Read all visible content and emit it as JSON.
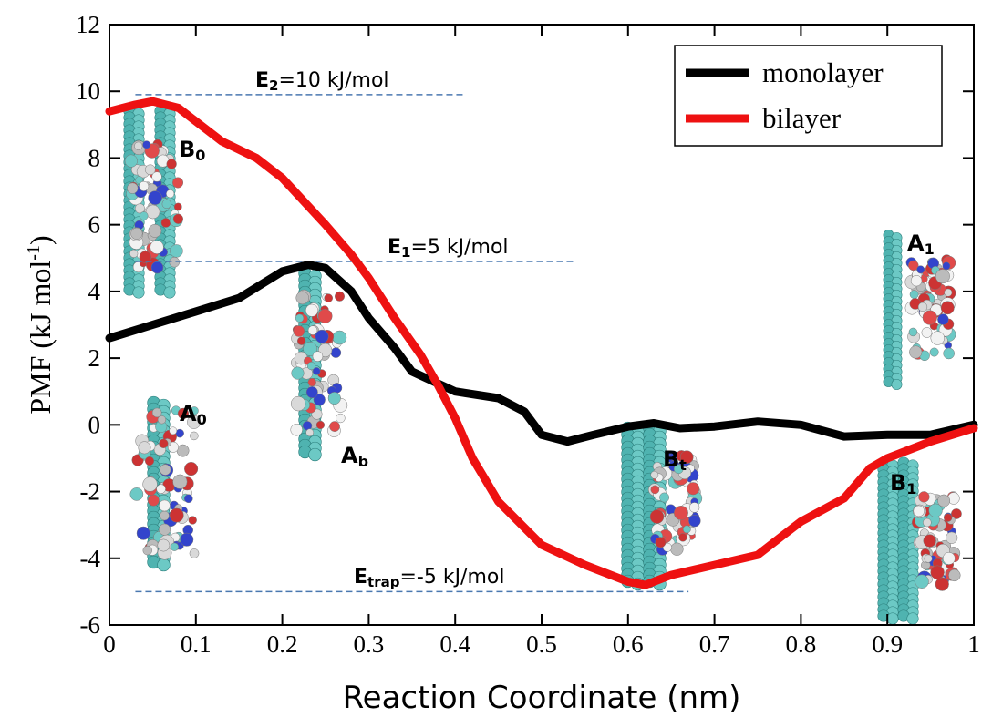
{
  "chart_data": {
    "type": "line",
    "x_label": "Reaction Coordinate (nm)",
    "y_label": {
      "text": "PMF (kJ mol",
      "sup": "-1",
      "end": ")"
    },
    "xlim": [
      0,
      1
    ],
    "ylim": [
      -6,
      12
    ],
    "xticks": [
      0,
      0.1,
      0.2,
      0.3,
      0.4,
      0.5,
      0.6,
      0.7,
      0.8,
      0.9,
      1
    ],
    "yticks": [
      -6,
      -4,
      -2,
      0,
      2,
      4,
      6,
      8,
      10,
      12
    ],
    "legend": "top-right",
    "series": [
      {
        "name": "monolayer",
        "color": "#000000",
        "x": [
          0,
          0.05,
          0.1,
          0.15,
          0.2,
          0.23,
          0.25,
          0.28,
          0.3,
          0.33,
          0.35,
          0.4,
          0.45,
          0.48,
          0.5,
          0.53,
          0.56,
          0.6,
          0.63,
          0.66,
          0.7,
          0.75,
          0.8,
          0.85,
          0.9,
          0.95,
          1
        ],
        "values": [
          2.6,
          3.0,
          3.4,
          3.8,
          4.6,
          4.8,
          4.7,
          4.0,
          3.2,
          2.3,
          1.6,
          1.0,
          0.8,
          0.4,
          -0.3,
          -0.5,
          -0.3,
          -0.05,
          0.05,
          -0.1,
          -0.05,
          0.1,
          0,
          -0.35,
          -0.3,
          -0.3,
          0
        ]
      },
      {
        "name": "bilayer",
        "color": "#ee1111",
        "x": [
          0,
          0.03,
          0.05,
          0.08,
          0.1,
          0.13,
          0.17,
          0.2,
          0.25,
          0.28,
          0.3,
          0.33,
          0.36,
          0.38,
          0.4,
          0.42,
          0.45,
          0.5,
          0.55,
          0.6,
          0.62,
          0.65,
          0.7,
          0.75,
          0.78,
          0.8,
          0.85,
          0.88,
          0.9,
          0.95,
          1
        ],
        "values": [
          9.4,
          9.6,
          9.7,
          9.5,
          9.1,
          8.5,
          8.0,
          7.4,
          6.0,
          5.1,
          4.4,
          3.2,
          2.1,
          1.2,
          0.2,
          -1.0,
          -2.3,
          -3.6,
          -4.2,
          -4.7,
          -4.8,
          -4.5,
          -4.2,
          -3.9,
          -3.3,
          -2.9,
          -2.2,
          -1.3,
          -1.0,
          -0.5,
          -0.1
        ]
      }
    ],
    "energy_lines": [
      {
        "main": "E",
        "sub": "2",
        "text": "=10 kJ/mol",
        "y": 9.9,
        "x": [
          0.03,
          0.41
        ]
      },
      {
        "main": "E",
        "sub": "1",
        "text": "=5 kJ/mol",
        "y": 4.9,
        "x": [
          0.03,
          0.54
        ]
      },
      {
        "main": "E",
        "sub": "trap",
        "text": "=-5 kJ/mol",
        "y": -5.0,
        "x": [
          0.03,
          0.67
        ]
      }
    ],
    "structure_labels": [
      {
        "main": "B",
        "sub": "0"
      },
      {
        "main": "A",
        "sub": "b"
      },
      {
        "main": "A",
        "sub": "0"
      },
      {
        "main": "B",
        "sub": "t"
      },
      {
        "main": "A",
        "sub": "1"
      },
      {
        "main": "B",
        "sub": "1"
      }
    ]
  }
}
